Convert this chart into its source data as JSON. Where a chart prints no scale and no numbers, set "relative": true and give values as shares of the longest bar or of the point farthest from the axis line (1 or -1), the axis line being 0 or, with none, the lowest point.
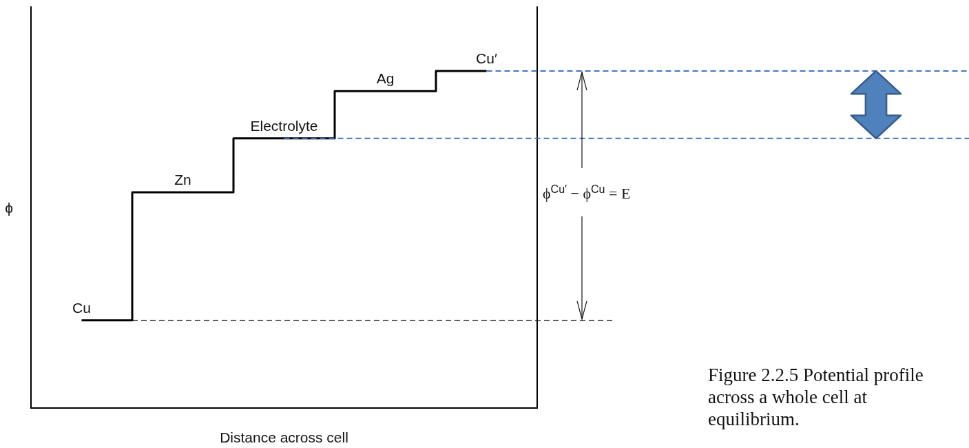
{
  "chart_data": {
    "type": "step",
    "relative": true,
    "xlabel": "Distance across cell",
    "ylabel": "ϕ",
    "categories": [
      null,
      null,
      null,
      null,
      null
    ],
    "series": [
      {
        "color": "#000000",
        "values": [
          0.26,
          0.64,
          0.8,
          0.94,
          1
        ]
      }
    ],
    "value_labels": [
      "Cu",
      "Zn",
      "Electrolyte",
      "Ag",
      "Cu′"
    ],
    "ref_lines": [
      {
        "axis": "y",
        "value": 0.26,
        "line_style": "dashed",
        "color": "#000000"
      },
      {
        "axis": "y",
        "value": 1,
        "line_style": "dashed",
        "color": "#4472c4"
      },
      {
        "axis": "y",
        "value": 0.8,
        "line_style": "dashed",
        "color": "#4472c4"
      }
    ],
    "annotations": [
      "ϕ$^{Cu′}$ − ϕ$^{Cu}$ = E",
      "Figure 2.2.5 Potential profile across a whole cell at equilibrium."
    ],
    "grid": false,
    "marker": "none",
    "line_style": "solid"
  }
}
